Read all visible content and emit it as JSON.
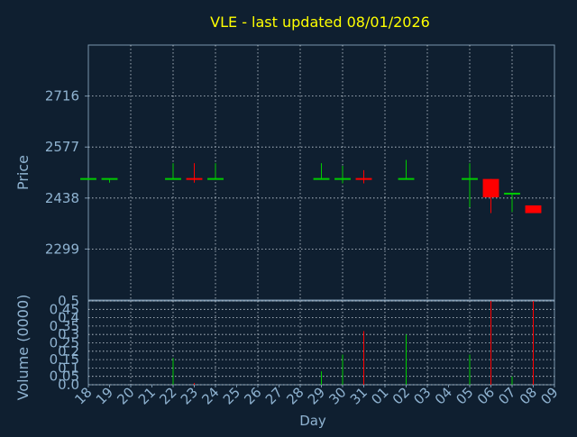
{
  "chart_data": {
    "type": "candlestick",
    "title": "VLE - last updated 08/01/2026",
    "ylabel": "Price",
    "xlabel": "Day",
    "volume_ylabel": "Volume (0000)",
    "price_yticks": [
      2299,
      2438,
      2577,
      2716
    ],
    "price_ylim": [
      2160,
      2855
    ],
    "volume_yticks": [
      0.0,
      0.05,
      0.1,
      0.15,
      0.2,
      0.25,
      0.3,
      0.35,
      0.4,
      0.45,
      0.5
    ],
    "volume_ytick_labels": [
      "0.0",
      "0.05",
      "0.1",
      "0.15",
      "0.2",
      "0.25",
      "0.3",
      "0.35",
      "0.4",
      "0.45",
      "0.5"
    ],
    "volume_ylim": [
      0,
      0.5
    ],
    "x_labels": [
      "18",
      "19",
      "20",
      "21",
      "22",
      "23",
      "24",
      "25",
      "26",
      "27",
      "28",
      "29",
      "30",
      "31",
      "01",
      "02",
      "03",
      "04",
      "05",
      "06",
      "07",
      "08",
      "09"
    ],
    "grid": true,
    "colors": {
      "background": "#0f1f30",
      "text": "#8fb3d1",
      "title": "#ffff00",
      "up": "#00cc00",
      "down": "#ff0000",
      "axis": "#7a95ad",
      "grid": "#c8d2dc"
    },
    "candles": [
      {
        "day": "18",
        "open": 2490,
        "high": 2490,
        "low": 2490,
        "close": 2490,
        "volume": 0.0
      },
      {
        "day": "19",
        "open": 2490,
        "high": 2490,
        "low": 2480,
        "close": 2490,
        "volume": 0.0
      },
      {
        "day": "22",
        "open": 2490,
        "high": 2533,
        "low": 2490,
        "close": 2490,
        "volume": 0.16
      },
      {
        "day": "23",
        "open": 2490,
        "high": 2533,
        "low": 2480,
        "close": 2488,
        "volume": 0.01
      },
      {
        "day": "24",
        "open": 2490,
        "high": 2533,
        "low": 2490,
        "close": 2490,
        "volume": 0.0
      },
      {
        "day": "29",
        "open": 2490,
        "high": 2533,
        "low": 2490,
        "close": 2490,
        "volume": 0.08
      },
      {
        "day": "30",
        "open": 2490,
        "high": 2526,
        "low": 2478,
        "close": 2490,
        "volume": 0.18
      },
      {
        "day": "31",
        "open": 2490,
        "high": 2514,
        "low": 2478,
        "close": 2488,
        "volume": 0.32
      },
      {
        "day": "02",
        "open": 2490,
        "high": 2542,
        "low": 2490,
        "close": 2490,
        "volume": 0.3
      },
      {
        "day": "05",
        "open": 2490,
        "high": 2533,
        "low": 2413,
        "close": 2490,
        "volume": 0.18
      },
      {
        "day": "06",
        "open": 2490,
        "high": 2490,
        "low": 2397,
        "close": 2440,
        "volume": 0.5
      },
      {
        "day": "07",
        "open": 2450,
        "high": 2450,
        "low": 2400,
        "close": 2450,
        "volume": 0.05
      },
      {
        "day": "08",
        "open": 2418,
        "high": 2418,
        "low": 2397,
        "close": 2397,
        "volume": 0.5
      }
    ]
  }
}
